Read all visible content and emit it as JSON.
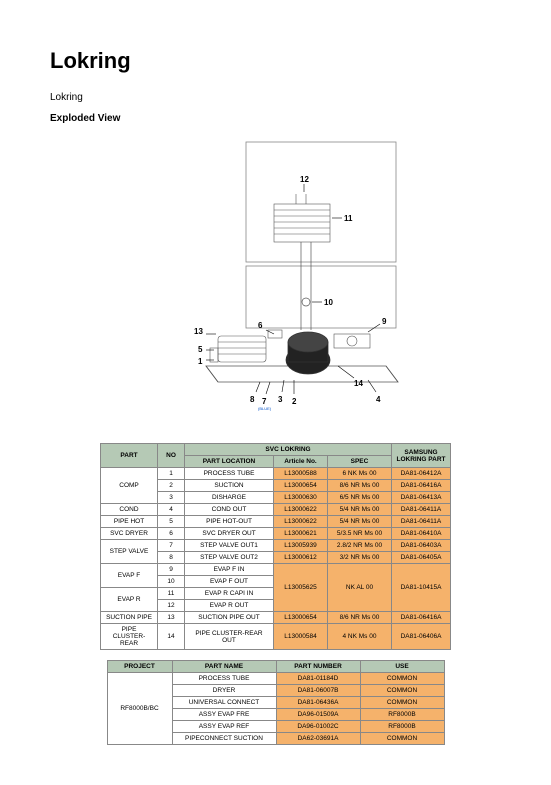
{
  "title": "Lokring",
  "subtitle": "Lokring",
  "section": "Exploded View",
  "table1": {
    "headers": {
      "part": "PART",
      "no": "NO",
      "svc": "SVC LOKRING",
      "samsung": "SAMSUNG LOKRING PART",
      "loc": "PART LOCATION",
      "art": "Article No.",
      "spec": "SPEC"
    },
    "groups": [
      {
        "name": "COMP",
        "rows": [
          {
            "no": "1",
            "loc": "PROCESS TUBE",
            "art": "L13000588",
            "spec": "6 NK Ms 00",
            "sam": "DA81-06412A"
          },
          {
            "no": "2",
            "loc": "SUCTION",
            "art": "L13000654",
            "spec": "8/6 NR Ms 00",
            "sam": "DA81-06416A"
          },
          {
            "no": "3",
            "loc": "DISHARGE",
            "art": "L13000630",
            "spec": "6/5 NR Ms 00",
            "sam": "DA81-06413A"
          }
        ]
      },
      {
        "name": "COND",
        "rows": [
          {
            "no": "4",
            "loc": "COND OUT",
            "art": "L13000622",
            "spec": "5/4 NR Ms 00",
            "sam": "DA81-06411A"
          }
        ]
      },
      {
        "name": "PIPE HOT",
        "rows": [
          {
            "no": "5",
            "loc": "PIPE HOT-OUT",
            "art": "L13000622",
            "spec": "5/4 NR Ms 00",
            "sam": "DA81-06411A"
          }
        ]
      },
      {
        "name": "SVC DRYER",
        "rows": [
          {
            "no": "6",
            "loc": "SVC DRYER OUT",
            "art": "L13000621",
            "spec": "5/3.5 NR Ms 00",
            "sam": "DA81-06410A"
          }
        ]
      },
      {
        "name": "STEP VALVE",
        "rows": [
          {
            "no": "7",
            "loc": "STEP VALVE OUT1",
            "art": "L13005939",
            "spec": "2.8/2 NR Ms 00",
            "sam": "DA81-06403A"
          },
          {
            "no": "8",
            "loc": "STEP VALVE OUT2",
            "art": "L13000612",
            "spec": "3/2 NR Ms 00",
            "sam": "DA81-06405A"
          }
        ]
      }
    ],
    "evap_group": {
      "parts": [
        {
          "name": "EVAP F",
          "rows": [
            {
              "no": "9",
              "loc": "EVAP F IN"
            },
            {
              "no": "10",
              "loc": "EVAP F OUT"
            }
          ]
        },
        {
          "name": "EVAP R",
          "rows": [
            {
              "no": "11",
              "loc": "EVAP R CAPI IN"
            },
            {
              "no": "12",
              "loc": "EVAP R OUT"
            }
          ]
        }
      ],
      "art": "L13005625",
      "spec": "NK AL 00",
      "sam": "DA81-10415A"
    },
    "tail": [
      {
        "name": "SUCTION PIPE",
        "no": "13",
        "loc": "SUCTION PIPE OUT",
        "art": "L13000654",
        "spec": "8/6 NR Ms 00",
        "sam": "DA81-06416A"
      },
      {
        "name": "PIPE CLUSTER-REAR",
        "no": "14",
        "loc": "PIPE CLUSTER-REAR OUT",
        "art": "L13000584",
        "spec": "4 NK Ms 00",
        "sam": "DA81-06406A"
      }
    ]
  },
  "table2": {
    "headers": {
      "project": "PROJECT",
      "name": "PART NAME",
      "num": "PART NUMBER",
      "use": "USE"
    },
    "project": "RF8000B/BC",
    "rows": [
      {
        "name": "PROCESS TUBE",
        "num": "DA81-01184D",
        "use": "COMMON"
      },
      {
        "name": "DRYER",
        "num": "DA81-06007B",
        "use": "COMMON"
      },
      {
        "name": "UNIVERSAL CONNECT",
        "num": "DA81-06436A",
        "use": "COMMON"
      },
      {
        "name": "ASSY EVAP FRE",
        "num": "DA96-01509A",
        "use": "RF8000B"
      },
      {
        "name": "ASSY EVAP REF",
        "num": "DA96-01002C",
        "use": "RF8000B"
      },
      {
        "name": "PIPECONNECT SUCTION",
        "num": "DA62-03691A",
        "use": "COMMON"
      }
    ]
  },
  "callouts": {
    "c1": "1",
    "c2": "2",
    "c3": "3",
    "c4": "4",
    "c5": "5",
    "c6": "6",
    "c7": "7",
    "c8": "8",
    "c9": "9",
    "c10": "10",
    "c11": "11",
    "c12": "12",
    "c13": "13",
    "c14": "14",
    "blue": "(BLUE)"
  }
}
